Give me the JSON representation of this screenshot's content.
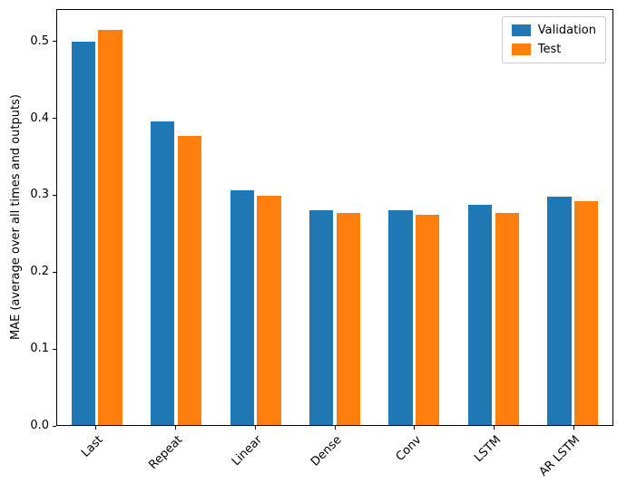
{
  "figure": {
    "background": "#ffffff"
  },
  "chart_data": {
    "type": "bar",
    "categories": [
      "Last",
      "Repeat",
      "Linear",
      "Dense",
      "Conv",
      "LSTM",
      "AR LSTM"
    ],
    "series": [
      {
        "name": "Validation",
        "color": "#1f77b4",
        "values": [
          0.501,
          0.396,
          0.306,
          0.281,
          0.281,
          0.287,
          0.298
        ]
      },
      {
        "name": "Test",
        "color": "#ff7f0e",
        "values": [
          0.516,
          0.377,
          0.299,
          0.277,
          0.275,
          0.277,
          0.292
        ]
      }
    ],
    "title": "",
    "xlabel": "",
    "ylabel": "MAE (average over all times and outputs)",
    "ylim": [
      0,
      0.542
    ],
    "yticks": [
      0.0,
      0.1,
      0.2,
      0.3,
      0.4,
      0.5
    ],
    "ytick_labels": [
      "0.0",
      "0.1",
      "0.2",
      "0.3",
      "0.4",
      "0.5"
    ],
    "grid": false,
    "legend": {
      "position": "upper right",
      "entries": [
        "Validation",
        "Test"
      ]
    },
    "bar_width": 0.3,
    "bar_offsets": [
      -0.17,
      0.17
    ],
    "xtick_rotation": 45
  }
}
